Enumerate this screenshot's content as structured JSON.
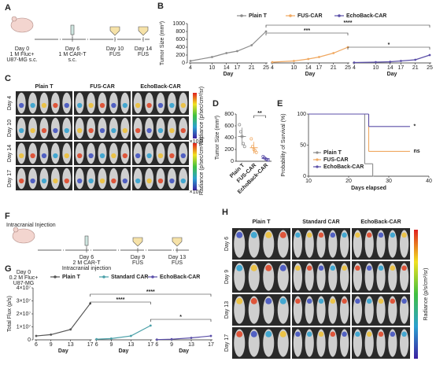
{
  "panel_labels": [
    "A",
    "B",
    "C",
    "D",
    "E",
    "F",
    "G",
    "H"
  ],
  "timeline_a": {
    "events": [
      {
        "lines": [
          "Day 0",
          "1 M Fluc+",
          "U87-MG s.c."
        ]
      },
      {
        "lines": [
          "Day 6",
          "1 M CAR-T",
          "s.c."
        ]
      },
      {
        "lines": [
          "Day 10",
          "FUS"
        ]
      },
      {
        "lines": [
          "Day 14",
          "FUS"
        ]
      }
    ]
  },
  "imaging_c": {
    "columns": [
      "Plain T",
      "FUS-CAR",
      "EchoBack-CAR"
    ],
    "rows": [
      "Day 4",
      "Day 10",
      "Day 14",
      "Day 17"
    ],
    "colorbars": [
      {
        "label": "Radiance (p/sec/cm²/sr)",
        "unit": "×10⁵"
      },
      {
        "label": "Radiance (p/sec/cm²/sr)",
        "unit": "×10⁶"
      }
    ]
  },
  "timeline_f": {
    "title": "Intracranial Injection",
    "events": [
      {
        "lines": [
          "Day 0",
          "0.2 M Fluc+",
          "U87-MG"
        ]
      },
      {
        "lines": [
          "Day 6",
          "2 M CAR-T",
          "Intracranial injection"
        ]
      },
      {
        "lines": [
          "Day 9",
          "FUS"
        ]
      },
      {
        "lines": [
          "Day 13",
          "FUS"
        ]
      }
    ]
  },
  "imaging_h": {
    "columns": [
      "Plain T",
      "Standard CAR",
      "EchoBack-CAR"
    ],
    "rows": [
      "Day 6",
      "Day 9",
      "Day 13",
      "Day 17"
    ],
    "colorbar_label": "Radiance (p/s/cm²/sr)"
  },
  "chart_data": [
    {
      "type": "grouped-line",
      "y_label": "Tumor Size (mm³)",
      "x_label": "Day",
      "ylim": [
        0,
        1000
      ],
      "yticks": [
        0,
        200,
        400,
        600,
        800,
        1000
      ],
      "xlim": [
        4,
        25
      ],
      "xticks": [
        4,
        10,
        14,
        17,
        21,
        25
      ],
      "series": [
        {
          "name": "Plain T",
          "color": "#8c8c8c",
          "x": [
            4,
            10,
            14,
            17,
            21,
            25
          ],
          "values": [
            50,
            150,
            250,
            300,
            450,
            800
          ]
        },
        {
          "name": "FUS-CAR",
          "color": "#f0a860",
          "x": [
            4,
            10,
            14,
            17,
            21,
            25
          ],
          "values": [
            20,
            50,
            100,
            150,
            250,
            400
          ]
        },
        {
          "name": "EchoBack-CAR",
          "color": "#5b4fa8",
          "x": [
            4,
            10,
            14,
            17,
            21,
            25
          ],
          "values": [
            10,
            20,
            30,
            50,
            80,
            200
          ]
        }
      ],
      "annotations": [
        "***",
        "****",
        "*"
      ]
    },
    {
      "type": "dot",
      "y_label": "Tumor Size (mm³)",
      "categories": [
        "Plain T",
        "FUS-CAR",
        "EchoBack-CAR"
      ],
      "colors": [
        "#8c8c8c",
        "#f0a860",
        "#5b4fa8"
      ],
      "values": [
        420,
        230,
        45
      ],
      "errors": [
        150,
        100,
        20
      ],
      "points": [
        [
          620,
          500,
          420,
          300,
          250
        ],
        [
          380,
          250,
          200,
          180,
          150
        ],
        [
          80,
          60,
          40,
          30,
          20
        ]
      ],
      "ylim": [
        0,
        800
      ],
      "yticks": [
        0,
        200,
        400,
        600,
        800
      ],
      "annotations": [
        "**"
      ]
    },
    {
      "type": "step",
      "y_label": "Probability of Survival (%)",
      "x_label": "Days elapsed",
      "xlim": [
        10,
        40
      ],
      "xticks": [
        10,
        20,
        30,
        40
      ],
      "ylim": [
        0,
        100
      ],
      "yticks": [
        0,
        50,
        100
      ],
      "series": [
        {
          "name": "Plain T",
          "color": "#8c8c8c",
          "x": [
            10,
            24,
            26
          ],
          "values": [
            100,
            20,
            0
          ]
        },
        {
          "name": "FUS-CAR",
          "color": "#f0a860",
          "x": [
            10,
            25,
            35
          ],
          "values": [
            100,
            40,
            40
          ]
        },
        {
          "name": "EchoBack-CAR",
          "color": "#5b4fa8",
          "x": [
            10,
            25,
            35
          ],
          "values": [
            100,
            80,
            80
          ]
        }
      ],
      "annotations": [
        "ns",
        "*"
      ]
    },
    {
      "type": "grouped-line",
      "y_label": "Total Flux (p/s)",
      "x_label": "Day",
      "ylim": [
        0,
        40000000
      ],
      "yticks": [
        0,
        {
          "value": 10000000,
          "label": "1×10⁷"
        },
        {
          "value": 20000000,
          "label": "2×10⁷"
        },
        {
          "value": 30000000,
          "label": "3×10⁷"
        },
        {
          "value": 40000000,
          "label": "4×10⁷"
        }
      ],
      "xlim": [
        6,
        17
      ],
      "xticks": [
        6,
        9,
        13,
        17
      ],
      "series": [
        {
          "name": "Plain T",
          "color": "#555555",
          "x": [
            6,
            9,
            13,
            17
          ],
          "values": [
            3000000,
            4000000,
            8000000,
            28000000
          ]
        },
        {
          "name": "Standard CAR",
          "color": "#4aa0a8",
          "x": [
            6,
            9,
            13,
            17
          ],
          "values": [
            500000,
            1000000,
            3000000,
            11000000
          ]
        },
        {
          "name": "EchoBack-CAR",
          "color": "#5b4fa8",
          "x": [
            6,
            9,
            13,
            17
          ],
          "values": [
            200000,
            500000,
            1500000,
            3000000
          ]
        }
      ],
      "annotations": [
        "****",
        "****",
        "*"
      ]
    }
  ]
}
